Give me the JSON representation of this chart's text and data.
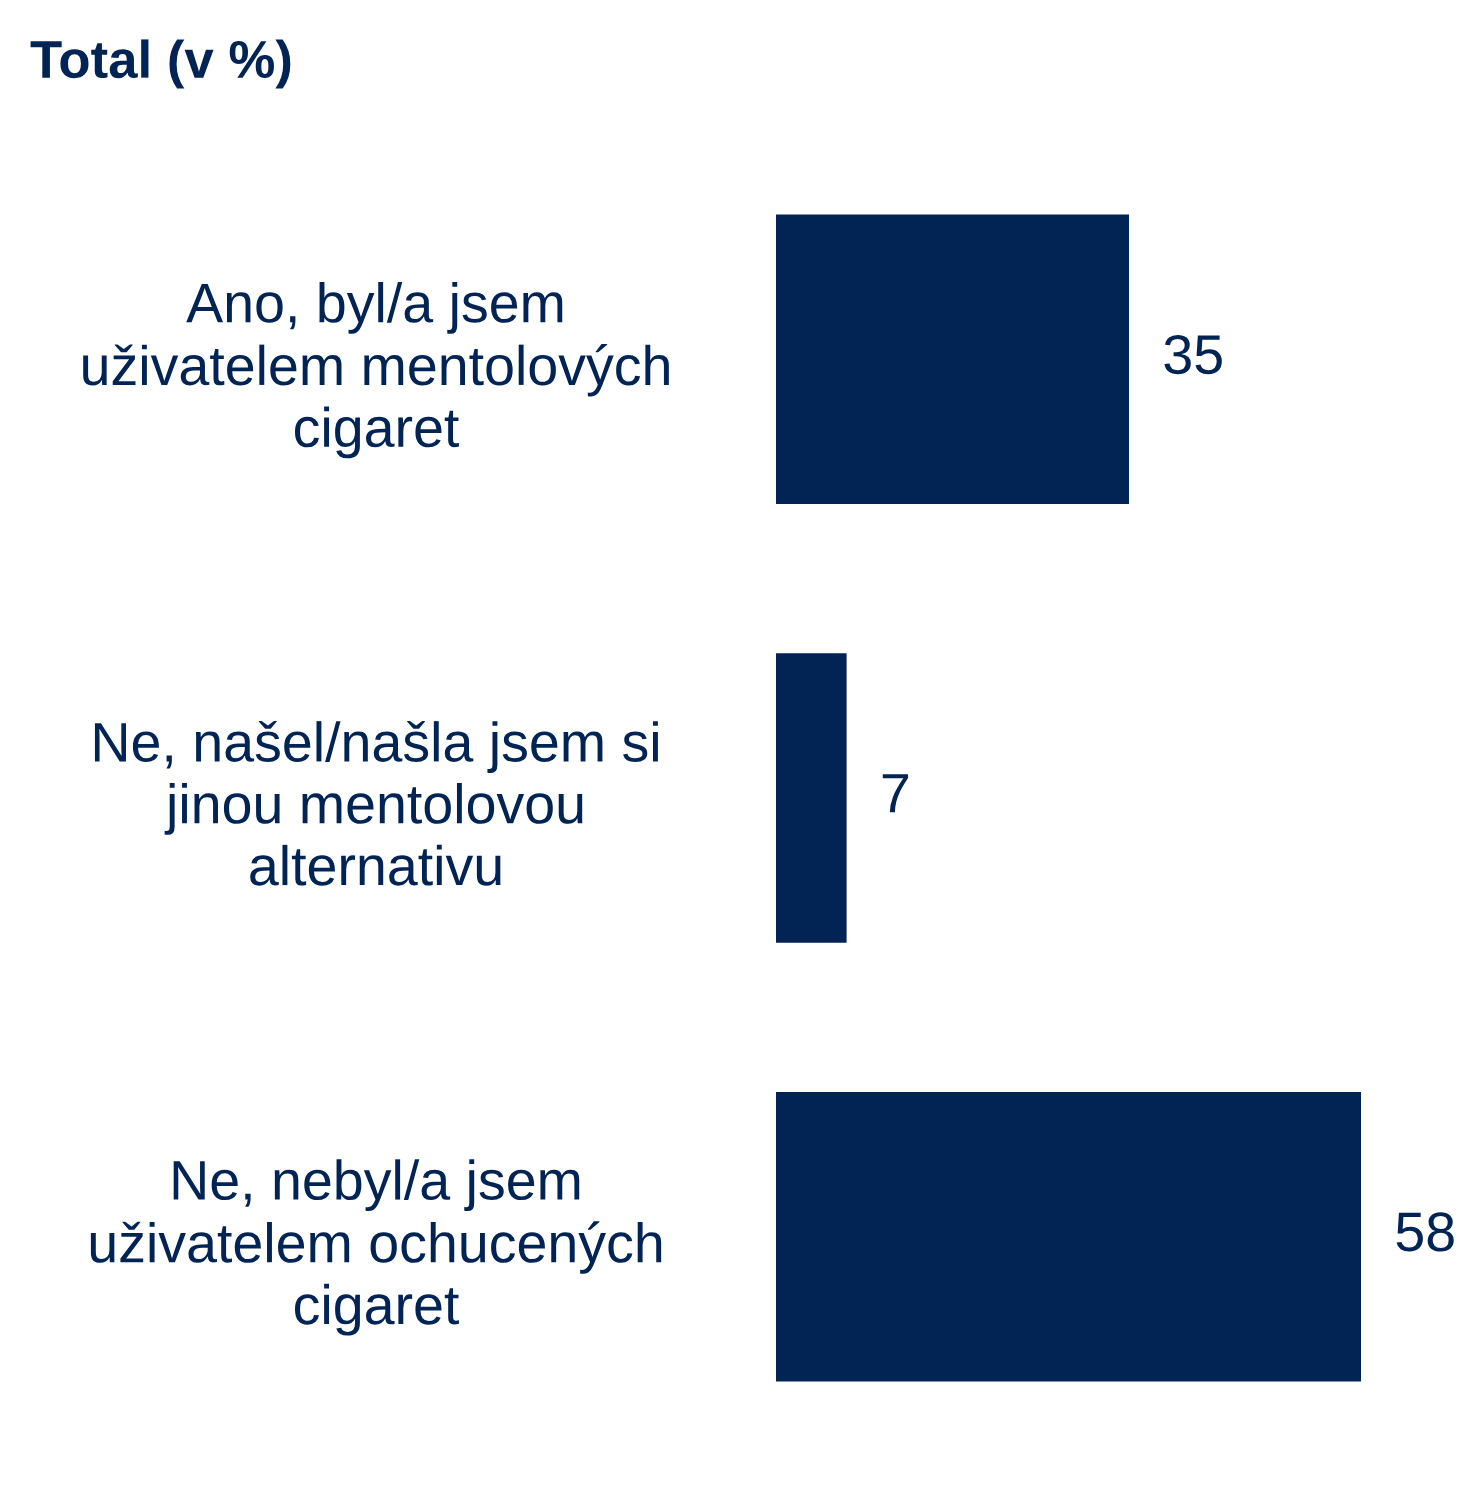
{
  "chart_data": {
    "type": "bar",
    "orientation": "horizontal",
    "title": "Total (v %)",
    "categories": [
      "Ano, byl/a jsem\nuživatelem mentolových\ncigaret",
      "Ne, našel/našla jsem si\njinou mentolovou\nalternativu",
      "Ne, nebyl/a jsem\nuživatelem ochucených\ncigaret"
    ],
    "values": [
      35,
      7,
      58
    ],
    "color": "#022454",
    "data_labels": true,
    "grid": false,
    "legend": false
  }
}
